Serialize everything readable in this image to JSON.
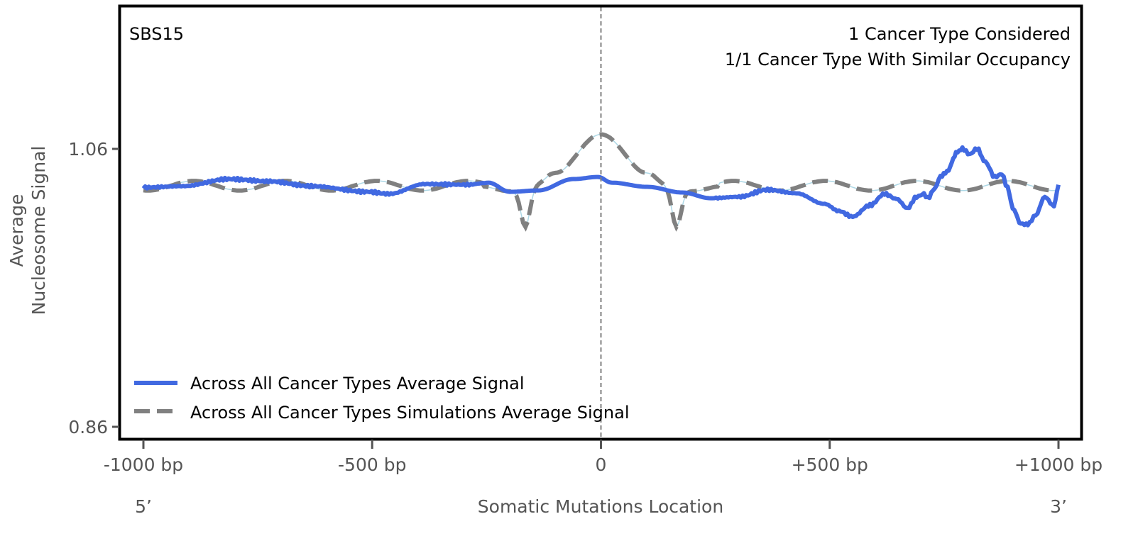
{
  "chart_data": {
    "type": "line",
    "title": "",
    "signature_label": "SBS15",
    "annotations": [
      "1 Cancer Type Considered",
      "1/1 Cancer Type With Similar Occupancy"
    ],
    "xlabel": "Somatic Mutations Location",
    "ylabel_lines": [
      "Average",
      "Nucleosome Signal"
    ],
    "xlim": [
      -1000,
      1000
    ],
    "ylim": [
      0.85,
      1.1612
    ],
    "x_ticks": [
      {
        "value": -1000,
        "label": "-1000 bp"
      },
      {
        "value": -500,
        "label": "-500 bp"
      },
      {
        "value": 0,
        "label": "0"
      },
      {
        "value": 500,
        "label": "+500 bp"
      },
      {
        "value": 1000,
        "label": "+1000 bp"
      }
    ],
    "y_ticks": [
      {
        "value": 1.06,
        "label": "1.06"
      },
      {
        "value": 0.86,
        "label": "0.86"
      }
    ],
    "end_labels": {
      "left": "5’",
      "right": "3’"
    },
    "center_line": {
      "x": 0,
      "style": "dashed",
      "color": "#808080"
    },
    "grid": false,
    "legend_position": "lower-left",
    "series": [
      {
        "name": "Across All Cancer Types Average Signal",
        "color": "#4169E1",
        "style": "solid",
        "x": [
          -1000,
          -913,
          -814,
          -727,
          -633,
          -509,
          -463,
          -385,
          -292,
          -246,
          -199,
          -137,
          -60,
          -6,
          23,
          101,
          178,
          240,
          302,
          364,
          426,
          489,
          520,
          550,
          588,
          620,
          646,
          670,
          690,
          706,
          714,
          730,
          742,
          760,
          770,
          776,
          790,
          806,
          822,
          840,
          861,
          876,
          889,
          900,
          918,
          933,
          950,
          970,
          990,
          1000
        ],
        "y": [
          1.0322,
          1.0332,
          1.0383,
          1.0367,
          1.0332,
          1.0291,
          1.0276,
          1.0347,
          1.0342,
          1.0357,
          1.0291,
          1.0301,
          1.0383,
          1.0398,
          1.0357,
          1.0327,
          1.0286,
          1.0245,
          1.0255,
          1.0306,
          1.0281,
          1.0204,
          1.0153,
          1.0112,
          1.0194,
          1.0276,
          1.024,
          1.0173,
          1.0255,
          1.0276,
          1.0245,
          1.0316,
          1.0403,
          1.0444,
          1.053,
          1.0571,
          1.0602,
          1.0561,
          1.0602,
          1.0505,
          1.0398,
          1.0418,
          1.0321,
          1.0172,
          1.0061,
          1.0056,
          1.0122,
          1.0255,
          1.0189,
          1.0342
        ],
        "note": "x/y arrays list selected points left-to-right (bp, signal); central region detailed"
      },
      {
        "name": "Across All Cancer Types Simulations Average Signal",
        "color": "#808080",
        "style": "dashed",
        "x": [],
        "y": []
      }
    ]
  }
}
